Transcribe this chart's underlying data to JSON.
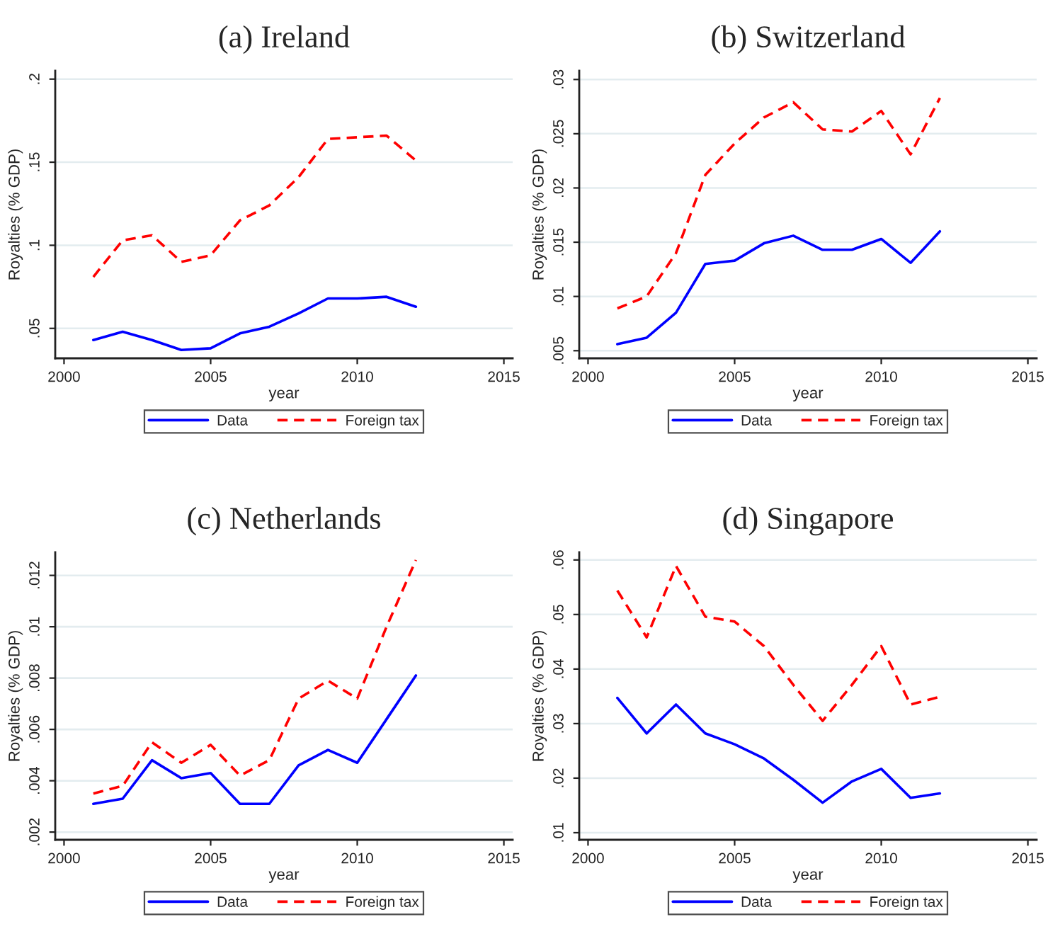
{
  "chart_data": [
    {
      "type": "line",
      "title": "(a) Ireland",
      "xlabel": "year",
      "ylabel": "Royalties (% GDP)",
      "x": [
        2001,
        2002,
        2003,
        2004,
        2005,
        2006,
        2007,
        2008,
        2009,
        2010,
        2011,
        2012
      ],
      "series": [
        {
          "name": "Data",
          "color": "#0000ff",
          "line_style": "solid",
          "values": [
            0.043,
            0.048,
            0.043,
            0.037,
            0.038,
            0.047,
            0.051,
            0.059,
            0.068,
            0.068,
            0.069,
            0.063
          ]
        },
        {
          "name": "Foreign tax",
          "color": "#ff0000",
          "line_style": "dashed",
          "values": [
            0.081,
            0.103,
            0.106,
            0.09,
            0.094,
            0.115,
            0.124,
            0.141,
            0.164,
            0.165,
            0.166,
            0.151
          ]
        }
      ],
      "xlim": [
        1999.7,
        2015.3
      ],
      "xticks": [
        2000,
        2005,
        2010,
        2015
      ],
      "ylim": [
        0.032,
        0.205
      ],
      "yticks": [
        {
          "value": 0.05,
          "label": ".05"
        },
        {
          "value": 0.1,
          "label": ".1"
        },
        {
          "value": 0.15,
          "label": ".15"
        },
        {
          "value": 0.2,
          "label": ".2"
        }
      ],
      "grid": "y",
      "legend": "bottom",
      "marker": "none"
    },
    {
      "type": "line",
      "title": "(b) Switzerland",
      "xlabel": "year",
      "ylabel": "Royalties (% GDP)",
      "x": [
        2001,
        2002,
        2003,
        2004,
        2005,
        2006,
        2007,
        2008,
        2009,
        2010,
        2011,
        2012
      ],
      "series": [
        {
          "name": "Data",
          "color": "#0000ff",
          "line_style": "solid",
          "values": [
            0.0056,
            0.0062,
            0.0085,
            0.013,
            0.0133,
            0.0149,
            0.0156,
            0.0143,
            0.0143,
            0.0153,
            0.0131,
            0.016
          ]
        },
        {
          "name": "Foreign tax",
          "color": "#ff0000",
          "line_style": "dashed",
          "values": [
            0.0089,
            0.01,
            0.014,
            0.0212,
            0.0241,
            0.0265,
            0.0279,
            0.0254,
            0.0252,
            0.0271,
            0.0231,
            0.0283
          ]
        }
      ],
      "xlim": [
        1999.7,
        2015.3
      ],
      "xticks": [
        2000,
        2005,
        2010,
        2015
      ],
      "ylim": [
        0.0043,
        0.0308
      ],
      "yticks": [
        {
          "value": 0.005,
          "label": ".005"
        },
        {
          "value": 0.01,
          "label": ".01"
        },
        {
          "value": 0.015,
          "label": ".015"
        },
        {
          "value": 0.02,
          "label": ".02"
        },
        {
          "value": 0.025,
          "label": ".025"
        },
        {
          "value": 0.03,
          "label": ".03"
        }
      ],
      "grid": "y",
      "legend": "bottom",
      "marker": "none"
    },
    {
      "type": "line",
      "title": "(c) Netherlands",
      "xlabel": "year",
      "ylabel": "Royalties (% GDP)",
      "x": [
        2001,
        2002,
        2003,
        2004,
        2005,
        2006,
        2007,
        2008,
        2009,
        2010,
        2011,
        2012
      ],
      "series": [
        {
          "name": "Data",
          "color": "#0000ff",
          "line_style": "solid",
          "values": [
            0.0031,
            0.0033,
            0.0048,
            0.0041,
            0.0043,
            0.0031,
            0.0031,
            0.0046,
            0.0052,
            0.0047,
            0.0064,
            0.0081
          ]
        },
        {
          "name": "Foreign tax",
          "color": "#ff0000",
          "line_style": "dashed",
          "values": [
            0.0035,
            0.0038,
            0.0055,
            0.0047,
            0.0054,
            0.0042,
            0.0048,
            0.0072,
            0.0079,
            0.0072,
            0.01,
            0.0126
          ]
        }
      ],
      "xlim": [
        1999.7,
        2015.3
      ],
      "xticks": [
        2000,
        2005,
        2010,
        2015
      ],
      "ylim": [
        0.0017,
        0.0129
      ],
      "yticks": [
        {
          "value": 0.002,
          "label": ".002"
        },
        {
          "value": 0.004,
          "label": ".004"
        },
        {
          "value": 0.006,
          "label": ".006"
        },
        {
          "value": 0.008,
          "label": ".008"
        },
        {
          "value": 0.01,
          "label": ".01"
        },
        {
          "value": 0.012,
          "label": ".012"
        }
      ],
      "grid": "y",
      "legend": "bottom",
      "marker": "none"
    },
    {
      "type": "line",
      "title": "(d) Singapore",
      "xlabel": "year",
      "ylabel": "Royalties (% GDP)",
      "x": [
        2001,
        2002,
        2003,
        2004,
        2005,
        2006,
        2007,
        2008,
        2009,
        2010,
        2011,
        2012
      ],
      "series": [
        {
          "name": "Data",
          "color": "#0000ff",
          "line_style": "solid",
          "values": [
            0.0347,
            0.0282,
            0.0335,
            0.0282,
            0.0262,
            0.0236,
            0.0197,
            0.0155,
            0.0194,
            0.0217,
            0.0164,
            0.0172
          ]
        },
        {
          "name": "Foreign tax",
          "color": "#ff0000",
          "line_style": "dashed",
          "values": [
            0.0544,
            0.0458,
            0.0589,
            0.0496,
            0.0487,
            0.0442,
            0.0371,
            0.0305,
            0.0371,
            0.0442,
            0.0335,
            0.0349
          ]
        }
      ],
      "xlim": [
        1999.7,
        2015.3
      ],
      "xticks": [
        2000,
        2005,
        2010,
        2015
      ],
      "ylim": [
        0.0087,
        0.0614
      ],
      "yticks": [
        {
          "value": 0.01,
          "label": ".01"
        },
        {
          "value": 0.02,
          "label": ".02"
        },
        {
          "value": 0.03,
          "label": ".03"
        },
        {
          "value": 0.04,
          "label": ".04"
        },
        {
          "value": 0.05,
          "label": ".05"
        },
        {
          "value": 0.06,
          "label": ".06"
        }
      ],
      "grid": "y",
      "legend": "bottom",
      "marker": "none"
    }
  ]
}
